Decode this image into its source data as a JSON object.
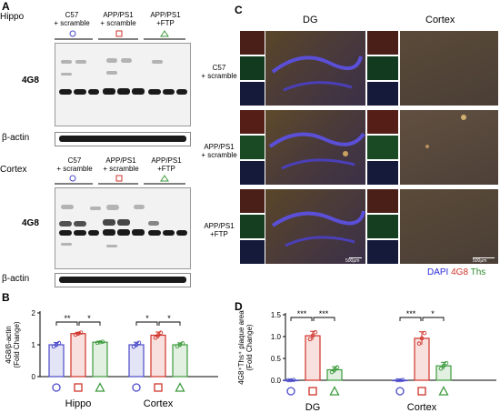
{
  "panels": {
    "A": "A",
    "B": "B",
    "C": "C",
    "D": "D"
  },
  "panelA": {
    "hippo_label": "Hippo",
    "cortex_label": "Cortex",
    "group_labels": [
      {
        "line1": "C57",
        "line2": "+ scramble"
      },
      {
        "line1": "APP/PS1",
        "line2": "+ scramble"
      },
      {
        "line1": "APP/PS1",
        "line2": "+FTP"
      }
    ],
    "blot_label": "4G8",
    "actin_label": "β-actin"
  },
  "panelC": {
    "dg_label": "DG",
    "cortex_label": "Cortex",
    "row_labels": [
      {
        "line1": "C57",
        "line2": "+ scramble"
      },
      {
        "line1": "APP/PS1",
        "line2": "+ scramble"
      },
      {
        "line1": "APP/PS1",
        "line2": "+FTP"
      }
    ],
    "scale_bar": "500μm",
    "legend": {
      "dapi": "DAPI",
      "g48": "4G8",
      "ths": "Ths"
    },
    "colors": {
      "dapi": "#2b2bd6",
      "g48": "#d0322a",
      "ths": "#2e8b2e"
    }
  },
  "chart_data": [
    {
      "type": "bar",
      "panel": "B",
      "ylabel": "4G8/β-actin (Fold Change)",
      "ylim": [
        0,
        2
      ],
      "yticks": [
        "0",
        "1",
        "2"
      ],
      "categories": [
        "Hippo",
        "Cortex"
      ],
      "groups": [
        "○",
        "□",
        "△"
      ],
      "group_colors": [
        "#4a4ac8",
        "#d0322a",
        "#3c9a3c"
      ],
      "values": [
        [
          1.0,
          1.35,
          1.08
        ],
        [
          1.0,
          1.3,
          1.0
        ]
      ],
      "errors": [
        [
          0.07,
          0.04,
          0.02
        ],
        [
          0.08,
          0.1,
          0.06
        ]
      ],
      "significance": [
        [
          "**",
          "*"
        ],
        [
          "*",
          "*"
        ]
      ]
    },
    {
      "type": "bar",
      "panel": "D",
      "ylabel": "4G8⁺Ths⁺ plaque area (Fold Change)",
      "ylim": [
        0,
        1.5
      ],
      "yticks": [
        "0.0",
        "0.5",
        "1.0",
        "1.5"
      ],
      "categories": [
        "DG",
        "Cortex"
      ],
      "groups": [
        "○",
        "□",
        "△"
      ],
      "group_colors": [
        "#4a4ac8",
        "#d0322a",
        "#3c9a3c"
      ],
      "values": [
        [
          0.0,
          1.02,
          0.24
        ],
        [
          0.0,
          0.96,
          0.33
        ]
      ],
      "errors": [
        [
          0.01,
          0.1,
          0.07
        ],
        [
          0.01,
          0.15,
          0.08
        ]
      ],
      "significance": [
        [
          "***",
          "***"
        ],
        [
          "***",
          "*"
        ]
      ]
    }
  ]
}
